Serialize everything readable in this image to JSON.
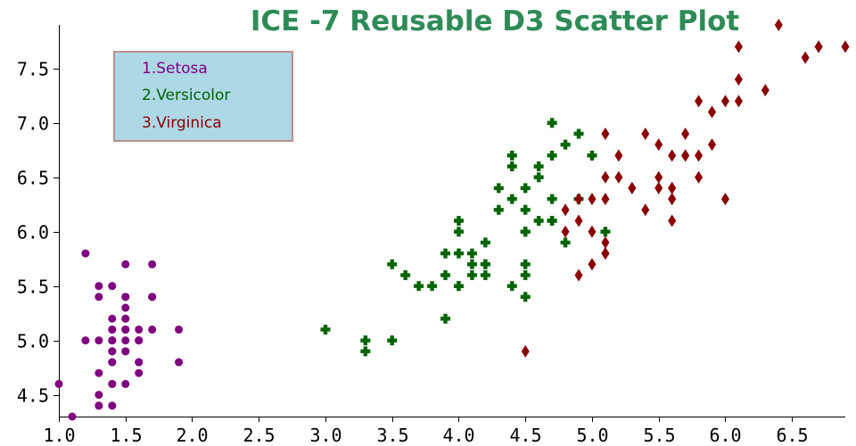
{
  "chart_data": {
    "type": "scatter",
    "title": "ICE -7 Reusable D3 Scatter Plot",
    "xlabel": "",
    "ylabel": "",
    "xlim": [
      1.0,
      6.9
    ],
    "ylim": [
      4.3,
      7.9
    ],
    "x_ticks": [
      "1.0",
      "1.5",
      "2.0",
      "2.5",
      "3.0",
      "3.5",
      "4.0",
      "4.5",
      "5.0",
      "5.5",
      "6.0",
      "6.5"
    ],
    "y_ticks": [
      "4.5",
      "5.0",
      "5.5",
      "6.0",
      "6.5",
      "7.0",
      "7.5"
    ],
    "grid": false,
    "legend_position": "top-left",
    "legend": [
      "1.Setosa",
      "2.Versicolor",
      "3.Virginica"
    ],
    "series": [
      {
        "name": "1.Setosa",
        "color": "#800080",
        "marker": "circle",
        "points": [
          [
            1.4,
            5.1
          ],
          [
            1.4,
            4.9
          ],
          [
            1.3,
            4.7
          ],
          [
            1.5,
            4.6
          ],
          [
            1.4,
            5.0
          ],
          [
            1.7,
            5.4
          ],
          [
            1.4,
            4.6
          ],
          [
            1.5,
            5.0
          ],
          [
            1.4,
            4.4
          ],
          [
            1.5,
            4.9
          ],
          [
            1.5,
            5.4
          ],
          [
            1.6,
            4.8
          ],
          [
            1.4,
            4.8
          ],
          [
            1.1,
            4.3
          ],
          [
            1.2,
            5.8
          ],
          [
            1.5,
            5.7
          ],
          [
            1.3,
            5.4
          ],
          [
            1.4,
            5.1
          ],
          [
            1.7,
            5.7
          ],
          [
            1.5,
            5.1
          ],
          [
            1.7,
            5.4
          ],
          [
            1.5,
            5.1
          ],
          [
            1.0,
            4.6
          ],
          [
            1.7,
            5.1
          ],
          [
            1.9,
            4.8
          ],
          [
            1.6,
            5.0
          ],
          [
            1.6,
            5.0
          ],
          [
            1.5,
            5.2
          ],
          [
            1.4,
            5.2
          ],
          [
            1.6,
            4.7
          ],
          [
            1.6,
            4.8
          ],
          [
            1.5,
            5.4
          ],
          [
            1.5,
            5.2
          ],
          [
            1.4,
            5.5
          ],
          [
            1.5,
            4.9
          ],
          [
            1.2,
            5.0
          ],
          [
            1.3,
            5.5
          ],
          [
            1.4,
            4.9
          ],
          [
            1.3,
            4.4
          ],
          [
            1.5,
            5.1
          ],
          [
            1.3,
            5.0
          ],
          [
            1.3,
            4.5
          ],
          [
            1.3,
            4.4
          ],
          [
            1.6,
            5.0
          ],
          [
            1.9,
            5.1
          ],
          [
            1.4,
            4.8
          ],
          [
            1.6,
            5.1
          ],
          [
            1.4,
            4.6
          ],
          [
            1.5,
            5.3
          ],
          [
            1.4,
            5.0
          ]
        ]
      },
      {
        "name": "2.Versicolor",
        "color": "#006400",
        "marker": "cross",
        "points": [
          [
            4.7,
            7.0
          ],
          [
            4.5,
            6.4
          ],
          [
            4.9,
            6.9
          ],
          [
            4.0,
            5.5
          ],
          [
            4.6,
            6.5
          ],
          [
            4.5,
            5.7
          ],
          [
            4.7,
            6.3
          ],
          [
            3.3,
            4.9
          ],
          [
            4.6,
            6.6
          ],
          [
            3.9,
            5.2
          ],
          [
            3.5,
            5.0
          ],
          [
            4.2,
            5.9
          ],
          [
            4.0,
            6.0
          ],
          [
            4.7,
            6.1
          ],
          [
            3.6,
            5.6
          ],
          [
            4.4,
            6.7
          ],
          [
            4.5,
            5.6
          ],
          [
            4.1,
            5.8
          ],
          [
            4.5,
            6.2
          ],
          [
            3.9,
            5.6
          ],
          [
            4.8,
            5.9
          ],
          [
            4.0,
            6.1
          ],
          [
            4.9,
            6.3
          ],
          [
            4.7,
            6.1
          ],
          [
            4.3,
            6.4
          ],
          [
            4.4,
            6.6
          ],
          [
            4.8,
            6.8
          ],
          [
            5.0,
            6.7
          ],
          [
            4.5,
            6.0
          ],
          [
            3.5,
            5.7
          ],
          [
            3.8,
            5.5
          ],
          [
            3.7,
            5.5
          ],
          [
            3.9,
            5.8
          ],
          [
            5.1,
            6.0
          ],
          [
            4.5,
            5.4
          ],
          [
            4.5,
            6.0
          ],
          [
            4.7,
            6.7
          ],
          [
            4.4,
            6.3
          ],
          [
            4.1,
            5.6
          ],
          [
            4.0,
            5.5
          ],
          [
            4.4,
            5.5
          ],
          [
            4.6,
            6.1
          ],
          [
            4.0,
            5.8
          ],
          [
            3.3,
            5.0
          ],
          [
            4.2,
            5.6
          ],
          [
            4.2,
            5.7
          ],
          [
            4.2,
            5.7
          ],
          [
            4.3,
            6.2
          ],
          [
            3.0,
            5.1
          ],
          [
            4.1,
            5.7
          ]
        ]
      },
      {
        "name": "3.Virginica",
        "color": "#8b0000",
        "marker": "diamond",
        "points": [
          [
            6.0,
            6.3
          ],
          [
            5.1,
            5.8
          ],
          [
            5.9,
            7.1
          ],
          [
            5.6,
            6.3
          ],
          [
            5.8,
            6.5
          ],
          [
            6.6,
            7.6
          ],
          [
            4.5,
            4.9
          ],
          [
            6.3,
            7.3
          ],
          [
            5.8,
            6.7
          ],
          [
            6.1,
            7.2
          ],
          [
            5.1,
            6.5
          ],
          [
            5.3,
            6.4
          ],
          [
            5.5,
            6.8
          ],
          [
            5.0,
            5.7
          ],
          [
            5.1,
            5.8
          ],
          [
            5.3,
            6.4
          ],
          [
            5.5,
            6.5
          ],
          [
            6.7,
            7.7
          ],
          [
            6.9,
            7.7
          ],
          [
            5.0,
            6.0
          ],
          [
            5.7,
            6.9
          ],
          [
            4.9,
            5.6
          ],
          [
            6.7,
            7.7
          ],
          [
            4.9,
            6.3
          ],
          [
            5.7,
            6.7
          ],
          [
            6.0,
            7.2
          ],
          [
            4.8,
            6.2
          ],
          [
            4.9,
            6.1
          ],
          [
            5.6,
            6.4
          ],
          [
            5.8,
            7.2
          ],
          [
            6.1,
            7.4
          ],
          [
            6.4,
            7.9
          ],
          [
            5.6,
            6.4
          ],
          [
            5.1,
            6.3
          ],
          [
            5.6,
            6.1
          ],
          [
            6.1,
            7.7
          ],
          [
            5.6,
            6.3
          ],
          [
            5.5,
            6.4
          ],
          [
            4.8,
            6.0
          ],
          [
            5.4,
            6.9
          ],
          [
            5.6,
            6.7
          ],
          [
            5.1,
            6.9
          ],
          [
            5.1,
            5.8
          ],
          [
            5.9,
            6.8
          ],
          [
            5.7,
            6.7
          ],
          [
            5.2,
            6.7
          ],
          [
            5.0,
            6.3
          ],
          [
            5.2,
            6.5
          ],
          [
            5.4,
            6.2
          ],
          [
            5.1,
            5.9
          ]
        ]
      }
    ]
  }
}
